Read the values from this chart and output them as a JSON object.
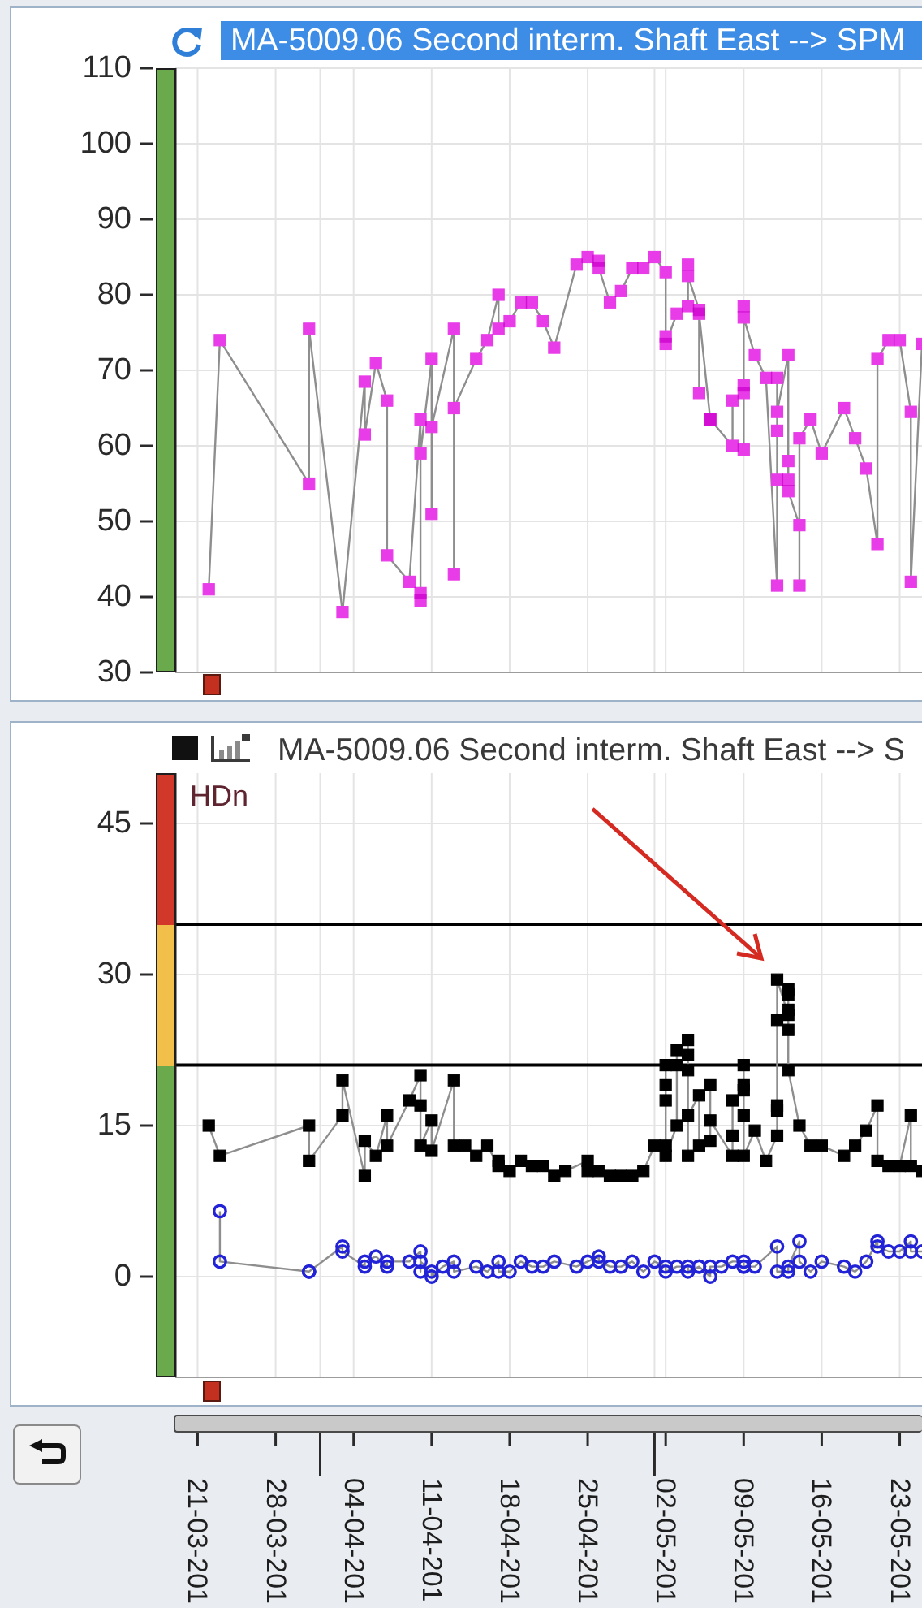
{
  "chart_data": [
    {
      "type": "line",
      "title": "MA-5009.06 Second interm. Shaft East --> SPM",
      "color": "#e83ce8",
      "marker": "square",
      "grid": true,
      "tick_labels": "y",
      "x": [
        "--03-22",
        "--03-23",
        "--03-31",
        "--03-31",
        "--04-03",
        "--04-05",
        "--04-05",
        "--04-06",
        "--04-07",
        "--04-07",
        "--04-09",
        "--04-10",
        "--04-10",
        "--04-10",
        "--04-10",
        "--04-11",
        "--04-11",
        "--04-11",
        "--04-13",
        "--04-13",
        "--04-13",
        "--04-15",
        "--04-16",
        "--04-17",
        "--04-17",
        "--04-18",
        "--04-19",
        "--04-20",
        "--04-21",
        "--04-22",
        "--04-24",
        "--04-25",
        "--04-26",
        "--04-26",
        "--04-27",
        "--04-28",
        "--04-29",
        "--04-30",
        "--05-01",
        "--05-02",
        "--05-02",
        "--05-02",
        "--05-03",
        "--05-04",
        "--05-04",
        "--05-04",
        "--05-05",
        "--05-05",
        "--05-05",
        "--05-06",
        "--05-06",
        "--05-08",
        "--05-08",
        "--05-09",
        "--05-09",
        "--05-09",
        "--05-09",
        "--05-09",
        "--05-10",
        "--05-11",
        "--05-12",
        "--05-12",
        "--05-12",
        "--05-12",
        "--05-12",
        "--05-13",
        "--05-13",
        "--05-13",
        "--05-13",
        "--05-14",
        "--05-14",
        "--05-14",
        "--05-15",
        "--05-16",
        "--05-18",
        "--05-19",
        "--05-20",
        "--05-21",
        "--05-21",
        "--05-22",
        "--05-23",
        "--05-24",
        "--05-24",
        "--05-25"
      ],
      "values": [
        41,
        74,
        55,
        75.5,
        38,
        68.5,
        61.5,
        71,
        66,
        45.5,
        42,
        63.5,
        40.5,
        39.5,
        59,
        71.5,
        51,
        62.5,
        75.5,
        43,
        65,
        71.5,
        74,
        80,
        75.5,
        76.5,
        79,
        79,
        76.5,
        73,
        84,
        85,
        84.5,
        83.5,
        79,
        80.5,
        83.5,
        83.5,
        85,
        83,
        74.5,
        73.5,
        77.5,
        78.5,
        84,
        82.5,
        78,
        67,
        77.5,
        63.5,
        63.5,
        60,
        66,
        67,
        68,
        59.5,
        78.5,
        77,
        72,
        69,
        41.5,
        55.5,
        69,
        62,
        64.5,
        72,
        55.5,
        58,
        54,
        49.5,
        41.5,
        61,
        63.5,
        59,
        65,
        61,
        57,
        47,
        71.5,
        74,
        74,
        64.5,
        42,
        73.5
      ],
      "xlim": [
        "--03-19",
        "--05-25"
      ],
      "xticks": [
        {
          "value": "--03-21",
          "label": "21-03-201"
        },
        {
          "value": "--03-28",
          "label": "28-03-201"
        },
        {
          "value": "--04-01",
          "label": null
        },
        {
          "value": "--04-04",
          "label": "04-04-201"
        },
        {
          "value": "--04-11",
          "label": "11-04-201"
        },
        {
          "value": "--04-18",
          "label": "18-04-201"
        },
        {
          "value": "--04-25",
          "label": "25-04-201"
        },
        {
          "value": "--05-01",
          "label": null
        },
        {
          "value": "--05-02",
          "label": "02-05-201"
        },
        {
          "value": "--05-09",
          "label": "09-05-201"
        },
        {
          "value": "--05-16",
          "label": "16-05-201"
        },
        {
          "value": "--05-23",
          "label": "23-05-201"
        }
      ],
      "ylim": [
        30,
        110
      ],
      "yticks": [
        30,
        40,
        50,
        60,
        70,
        80,
        90,
        100,
        110
      ]
    },
    {
      "type": "line",
      "title": "MA-5009.06 Second interm. Shaft East --> S",
      "ylabel": "HDn",
      "marker": "square",
      "grid": true,
      "series": [
        {
          "color": "#000000",
          "x": [
            "--03-22",
            "--03-23",
            "--03-31",
            "--03-31",
            "--04-03",
            "--04-03",
            "--04-05",
            "--04-05",
            "--04-06",
            "--04-07",
            "--04-07",
            "--04-09",
            "--04-10",
            "--04-10",
            "--04-10",
            "--04-11",
            "--04-11",
            "--04-13",
            "--04-13",
            "--04-14",
            "--04-15",
            "--04-16",
            "--04-17",
            "--04-17",
            "--04-18",
            "--04-19",
            "--04-20",
            "--04-21",
            "--04-22",
            "--04-23",
            "--04-25",
            "--04-25",
            "--04-26",
            "--04-27",
            "--04-28",
            "--04-29",
            "--04-30",
            "--05-01",
            "--05-02",
            "--05-02",
            "--05-02",
            "--05-02",
            "--05-02",
            "--05-03",
            "--05-03",
            "--05-03",
            "--05-04",
            "--05-04",
            "--05-04",
            "--05-04",
            "--05-04",
            "--05-05",
            "--05-05",
            "--05-06",
            "--05-06",
            "--05-06",
            "--05-08",
            "--05-08",
            "--05-08",
            "--05-09",
            "--05-09",
            "--05-09",
            "--05-09",
            "--05-09",
            "--05-10",
            "--05-11",
            "--05-12",
            "--05-12",
            "--05-12",
            "--05-12",
            "--05-12",
            "--05-13",
            "--05-13",
            "--05-13",
            "--05-13",
            "--05-13",
            "--05-13",
            "--05-14",
            "--05-15",
            "--05-16",
            "--05-18",
            "--05-19",
            "--05-20",
            "--05-21",
            "--05-21",
            "--05-22",
            "--05-23",
            "--05-24",
            "--05-24",
            "--05-25"
          ],
          "values": [
            15,
            12,
            15,
            11.5,
            16,
            19.5,
            10,
            13.5,
            12,
            16,
            13,
            17.5,
            20,
            17,
            13,
            15.5,
            12.5,
            19.5,
            13,
            13,
            12,
            13,
            11,
            11.5,
            10.5,
            11.5,
            11,
            11,
            10,
            10.5,
            11.5,
            10.5,
            10.5,
            10,
            10,
            10,
            10.5,
            13,
            13,
            17.5,
            19,
            21,
            12,
            15,
            21,
            22.5,
            23.5,
            22,
            20.5,
            12,
            16,
            18,
            13,
            13.5,
            19,
            15.5,
            12,
            14,
            17.5,
            18.5,
            21,
            16,
            19,
            12,
            14.5,
            11.5,
            14,
            17,
            16.5,
            25.5,
            29.5,
            26,
            28.5,
            28,
            26.5,
            24.5,
            20.5,
            15,
            13,
            13,
            12,
            13,
            14.5,
            17,
            11.5,
            11,
            11,
            16,
            11,
            10.5
          ]
        },
        {
          "color": "#2222d6",
          "marker": "circle",
          "x": [
            "--03-23",
            "--03-23",
            "--03-31",
            "--03-31",
            "--04-03",
            "--04-03",
            "--04-05",
            "--04-05",
            "--04-06",
            "--04-07",
            "--04-07",
            "--04-09",
            "--04-10",
            "--04-10",
            "--04-10",
            "--04-11",
            "--04-11",
            "--04-12",
            "--04-13",
            "--04-13",
            "--04-15",
            "--04-16",
            "--04-17",
            "--04-17",
            "--04-18",
            "--04-19",
            "--04-20",
            "--04-21",
            "--04-22",
            "--04-24",
            "--04-25",
            "--04-26",
            "--04-26",
            "--04-27",
            "--04-28",
            "--04-29",
            "--04-30",
            "--05-01",
            "--05-02",
            "--05-02",
            "--05-03",
            "--05-04",
            "--05-04",
            "--05-05",
            "--05-05",
            "--05-06",
            "--05-06",
            "--05-07",
            "--05-08",
            "--05-09",
            "--05-09",
            "--05-09",
            "--05-10",
            "--05-12",
            "--05-12",
            "--05-13",
            "--05-13",
            "--05-14",
            "--05-14",
            "--05-15",
            "--05-16",
            "--05-18",
            "--05-19",
            "--05-20",
            "--05-21",
            "--05-21",
            "--05-22",
            "--05-23",
            "--05-24",
            "--05-24",
            "--05-25"
          ],
          "values": [
            6.5,
            1.5,
            0.5,
            0.5,
            3,
            2.5,
            1,
            1.5,
            2,
            1,
            1.5,
            1.5,
            2.5,
            0.5,
            1.5,
            0.5,
            0,
            1,
            1.5,
            0.5,
            1,
            0.5,
            1.5,
            0.5,
            0.5,
            1.5,
            1,
            1,
            1.5,
            1,
            1.5,
            2,
            1.5,
            1,
            1,
            1.5,
            0.5,
            1.5,
            1,
            0.5,
            1,
            1,
            0.5,
            1,
            1,
            0,
            1,
            1,
            1.5,
            1.5,
            1,
            1,
            1,
            3,
            0.5,
            0.5,
            1,
            3.5,
            1.5,
            0.5,
            1.5,
            1,
            0.5,
            1.5,
            3.5,
            3,
            2.5,
            2.5,
            3.5,
            2.5,
            2.5
          ]
        }
      ],
      "xlim": [
        "--03-19",
        "--05-25"
      ],
      "xticks": [
        {
          "value": "--03-21",
          "label": "21-03-201"
        },
        {
          "value": "--03-28",
          "label": "28-03-201"
        },
        {
          "value": "--04-01",
          "label": null
        },
        {
          "value": "--04-04",
          "label": "04-04-201"
        },
        {
          "value": "--04-11",
          "label": "11-04-201"
        },
        {
          "value": "--04-18",
          "label": "18-04-201"
        },
        {
          "value": "--04-25",
          "label": "25-04-201"
        },
        {
          "value": "--05-01",
          "label": null
        },
        {
          "value": "--05-02",
          "label": "02-05-201"
        },
        {
          "value": "--05-09",
          "label": "09-05-201"
        },
        {
          "value": "--05-16",
          "label": "16-05-201"
        },
        {
          "value": "--05-23",
          "label": "23-05-201"
        }
      ],
      "ylim": [
        -10,
        50
      ],
      "yticks": [
        0,
        15,
        30,
        45
      ],
      "ref_lines": [
        {
          "axis": "y",
          "value": 21,
          "color": "#000000"
        },
        {
          "axis": "y",
          "value": 35,
          "color": "#000000"
        }
      ]
    }
  ]
}
